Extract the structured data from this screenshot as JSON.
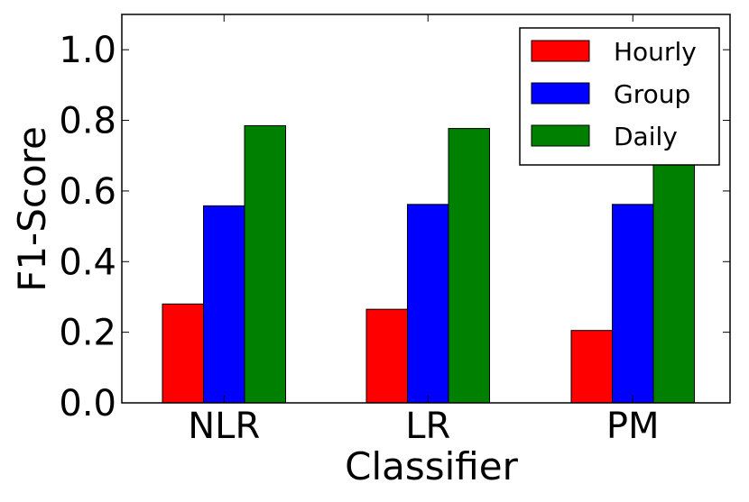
{
  "chart_data": {
    "type": "bar",
    "categories": [
      "NLR",
      "LR",
      "PM"
    ],
    "series": [
      {
        "name": "Hourly",
        "color": "#ff0000",
        "values": [
          0.28,
          0.265,
          0.205
        ]
      },
      {
        "name": "Group",
        "color": "#0000ff",
        "values": [
          0.558,
          0.562,
          0.562
        ]
      },
      {
        "name": "Daily",
        "color": "#008000",
        "values": [
          0.785,
          0.777,
          0.705
        ]
      }
    ],
    "xlabel": "Classifier",
    "ylabel": "F1-Score",
    "ylim": [
      0,
      1.1
    ],
    "yticks": [
      "0.0",
      "0.2",
      "0.4",
      "0.6",
      "0.8",
      "1.0"
    ],
    "grid": false,
    "legend_position": "top-right"
  }
}
